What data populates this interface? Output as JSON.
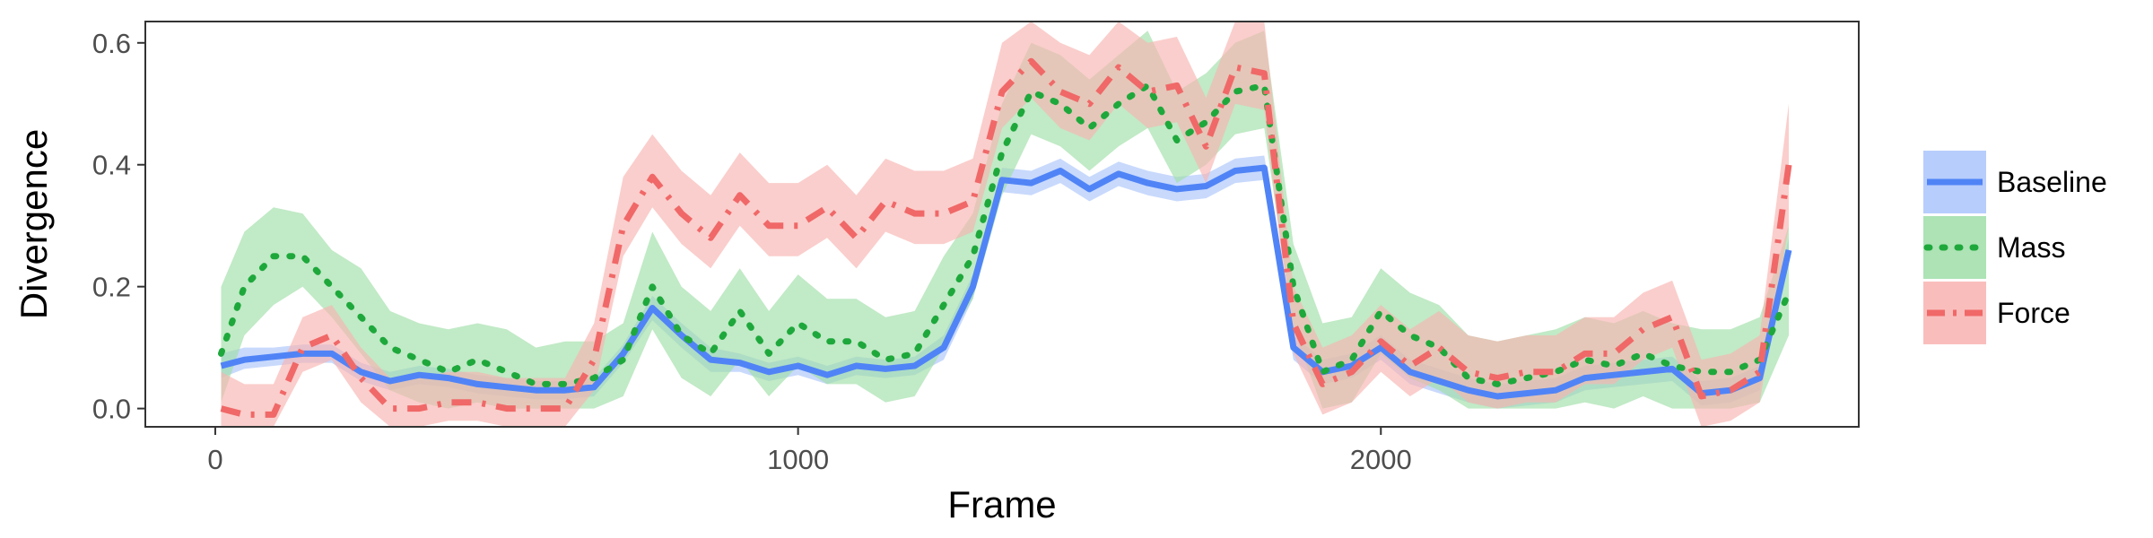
{
  "chart_data": {
    "type": "line",
    "xlabel": "Frame",
    "ylabel": "Divergence",
    "xlim": [
      -120,
      2820
    ],
    "ylim": [
      -0.03,
      0.635
    ],
    "x_ticks": [
      0,
      1000,
      2000
    ],
    "x_tick_labels": [
      "0",
      "1000",
      "2000"
    ],
    "y_ticks": [
      0.0,
      0.2,
      0.4,
      0.6
    ],
    "y_tick_labels": [
      "0.0",
      "0.2",
      "0.4",
      "0.6"
    ],
    "grid": false,
    "legend_position": "right",
    "x": [
      10,
      50,
      100,
      150,
      200,
      250,
      300,
      350,
      400,
      450,
      500,
      550,
      600,
      650,
      700,
      750,
      800,
      850,
      900,
      950,
      1000,
      1050,
      1100,
      1150,
      1200,
      1250,
      1300,
      1350,
      1400,
      1450,
      1500,
      1550,
      1600,
      1650,
      1700,
      1750,
      1800,
      1850,
      1900,
      1950,
      2000,
      2050,
      2100,
      2150,
      2200,
      2250,
      2300,
      2350,
      2400,
      2450,
      2500,
      2550,
      2600,
      2650,
      2700
    ],
    "series": [
      {
        "name": "Baseline",
        "color": "#5084f6",
        "band_color": "#aac4fb",
        "dash": "solid",
        "values": [
          0.07,
          0.08,
          0.085,
          0.09,
          0.09,
          0.06,
          0.045,
          0.055,
          0.05,
          0.04,
          0.035,
          0.03,
          0.03,
          0.035,
          0.09,
          0.165,
          0.12,
          0.08,
          0.075,
          0.06,
          0.07,
          0.055,
          0.07,
          0.065,
          0.07,
          0.1,
          0.2,
          0.375,
          0.37,
          0.39,
          0.36,
          0.385,
          0.37,
          0.36,
          0.365,
          0.39,
          0.395,
          0.1,
          0.06,
          0.07,
          0.1,
          0.06,
          0.045,
          0.03,
          0.02,
          0.025,
          0.03,
          0.05,
          0.055,
          0.06,
          0.065,
          0.025,
          0.03,
          0.05,
          0.26
        ],
        "lower": [
          0.05,
          0.065,
          0.07,
          0.075,
          0.075,
          0.045,
          0.03,
          0.04,
          0.035,
          0.025,
          0.02,
          0.015,
          0.015,
          0.02,
          0.075,
          0.145,
          0.1,
          0.06,
          0.06,
          0.045,
          0.055,
          0.04,
          0.055,
          0.05,
          0.055,
          0.08,
          0.18,
          0.355,
          0.35,
          0.37,
          0.34,
          0.365,
          0.35,
          0.34,
          0.345,
          0.37,
          0.375,
          0.08,
          0.04,
          0.05,
          0.08,
          0.04,
          0.025,
          0.01,
          0.0,
          0.005,
          0.01,
          0.03,
          0.035,
          0.04,
          0.045,
          0.005,
          0.01,
          0.03,
          0.24
        ],
        "upper": [
          0.09,
          0.1,
          0.1,
          0.105,
          0.105,
          0.075,
          0.06,
          0.07,
          0.065,
          0.055,
          0.05,
          0.045,
          0.045,
          0.05,
          0.105,
          0.185,
          0.14,
          0.1,
          0.09,
          0.075,
          0.085,
          0.07,
          0.085,
          0.08,
          0.085,
          0.12,
          0.22,
          0.395,
          0.39,
          0.41,
          0.38,
          0.405,
          0.39,
          0.38,
          0.385,
          0.41,
          0.415,
          0.12,
          0.08,
          0.09,
          0.12,
          0.08,
          0.065,
          0.05,
          0.04,
          0.045,
          0.05,
          0.07,
          0.075,
          0.08,
          0.085,
          0.045,
          0.05,
          0.07,
          0.28
        ]
      },
      {
        "name": "Mass",
        "color": "#1ea83c",
        "band_color": "#9fdea8",
        "dash": "dotted",
        "values": [
          0.09,
          0.2,
          0.25,
          0.25,
          0.2,
          0.15,
          0.1,
          0.08,
          0.06,
          0.08,
          0.06,
          0.04,
          0.04,
          0.05,
          0.08,
          0.2,
          0.12,
          0.09,
          0.16,
          0.09,
          0.14,
          0.11,
          0.11,
          0.08,
          0.09,
          0.17,
          0.25,
          0.42,
          0.52,
          0.5,
          0.46,
          0.5,
          0.53,
          0.44,
          0.47,
          0.52,
          0.53,
          0.2,
          0.06,
          0.08,
          0.16,
          0.12,
          0.1,
          0.05,
          0.04,
          0.05,
          0.06,
          0.08,
          0.07,
          0.09,
          0.07,
          0.06,
          0.06,
          0.08,
          0.19
        ],
        "lower": [
          0.01,
          0.12,
          0.17,
          0.2,
          0.15,
          0.09,
          0.03,
          0.01,
          0.0,
          0.01,
          0.0,
          0.0,
          0.0,
          0.0,
          0.02,
          0.13,
          0.05,
          0.02,
          0.08,
          0.02,
          0.07,
          0.04,
          0.04,
          0.01,
          0.02,
          0.1,
          0.18,
          0.35,
          0.45,
          0.43,
          0.39,
          0.43,
          0.46,
          0.37,
          0.4,
          0.45,
          0.46,
          0.13,
          0.0,
          0.01,
          0.09,
          0.05,
          0.03,
          0.0,
          0.0,
          0.0,
          0.0,
          0.01,
          0.0,
          0.02,
          0.0,
          0.0,
          0.0,
          0.01,
          0.12
        ],
        "upper": [
          0.2,
          0.29,
          0.33,
          0.32,
          0.26,
          0.23,
          0.16,
          0.14,
          0.13,
          0.14,
          0.13,
          0.1,
          0.11,
          0.11,
          0.14,
          0.29,
          0.2,
          0.16,
          0.23,
          0.16,
          0.22,
          0.18,
          0.18,
          0.15,
          0.16,
          0.25,
          0.32,
          0.5,
          0.6,
          0.58,
          0.54,
          0.58,
          0.62,
          0.52,
          0.55,
          0.6,
          0.62,
          0.27,
          0.14,
          0.15,
          0.23,
          0.19,
          0.17,
          0.12,
          0.11,
          0.12,
          0.13,
          0.15,
          0.14,
          0.16,
          0.14,
          0.13,
          0.13,
          0.15,
          0.3
        ]
      },
      {
        "name": "Force",
        "color": "#f06868",
        "band_color": "#f8b3b0",
        "dash": "dashdot",
        "values": [
          0.0,
          -0.01,
          -0.01,
          0.1,
          0.12,
          0.05,
          0.0,
          0.0,
          0.01,
          0.01,
          0.0,
          0.0,
          0.0,
          0.08,
          0.3,
          0.38,
          0.32,
          0.28,
          0.35,
          0.3,
          0.3,
          0.33,
          0.28,
          0.34,
          0.32,
          0.32,
          0.34,
          0.52,
          0.57,
          0.52,
          0.5,
          0.56,
          0.52,
          0.53,
          0.43,
          0.56,
          0.55,
          0.14,
          0.04,
          0.06,
          0.11,
          0.07,
          0.1,
          0.06,
          0.05,
          0.06,
          0.06,
          0.09,
          0.09,
          0.13,
          0.15,
          0.02,
          0.03,
          0.06,
          0.4
        ],
        "lower": [
          -0.03,
          -0.03,
          -0.03,
          0.06,
          0.08,
          0.01,
          -0.03,
          -0.03,
          -0.02,
          -0.02,
          -0.03,
          -0.03,
          -0.03,
          0.03,
          0.25,
          0.33,
          0.27,
          0.23,
          0.3,
          0.25,
          0.25,
          0.28,
          0.23,
          0.29,
          0.27,
          0.27,
          0.29,
          0.46,
          0.51,
          0.46,
          0.44,
          0.5,
          0.46,
          0.47,
          0.37,
          0.5,
          0.49,
          0.09,
          -0.01,
          0.01,
          0.06,
          0.02,
          0.05,
          0.01,
          0.0,
          0.01,
          0.01,
          0.04,
          0.04,
          0.08,
          0.1,
          -0.03,
          -0.02,
          0.01,
          0.3
        ],
        "upper": [
          0.06,
          0.04,
          0.04,
          0.15,
          0.17,
          0.1,
          0.05,
          0.05,
          0.06,
          0.06,
          0.05,
          0.05,
          0.05,
          0.14,
          0.38,
          0.45,
          0.39,
          0.35,
          0.42,
          0.37,
          0.37,
          0.4,
          0.35,
          0.41,
          0.39,
          0.39,
          0.41,
          0.6,
          0.635,
          0.6,
          0.58,
          0.635,
          0.6,
          0.61,
          0.51,
          0.635,
          0.635,
          0.2,
          0.1,
          0.12,
          0.17,
          0.13,
          0.16,
          0.12,
          0.11,
          0.12,
          0.12,
          0.15,
          0.15,
          0.19,
          0.21,
          0.08,
          0.09,
          0.12,
          0.5
        ]
      }
    ]
  }
}
